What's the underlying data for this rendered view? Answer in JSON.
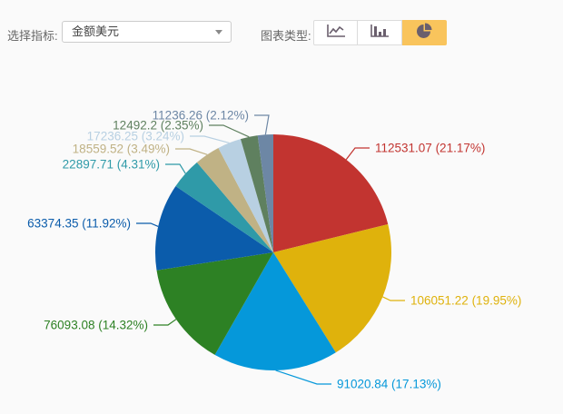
{
  "toolbar": {
    "indicator_label": "选择指标:",
    "indicator_select": {
      "value": "金额美元"
    },
    "chart_type_label": "图表类型:",
    "chart_type_buttons": [
      {
        "name": "line-chart",
        "active": false
      },
      {
        "name": "bar-chart",
        "active": false
      },
      {
        "name": "pie-chart",
        "active": true
      }
    ],
    "active_button_color": "#f9c45c",
    "icon_color": "#6a5f6d"
  },
  "chart_data": {
    "type": "pie",
    "start_angle": "top",
    "direction": "clockwise",
    "label_format": "{value} ({percent}%)",
    "slices": [
      {
        "value": 112531.07,
        "value_label": "112531.07",
        "percent": 21.17,
        "color": "#c23430"
      },
      {
        "value": 106051.22,
        "value_label": "106051.22",
        "percent": 19.95,
        "color": "#dfb20c"
      },
      {
        "value": 91020.84,
        "value_label": "91020.84",
        "percent": 17.13,
        "color": "#0598da"
      },
      {
        "value": 76093.08,
        "value_label": "76093.08",
        "percent": 14.32,
        "color": "#2d8124"
      },
      {
        "value": 63374.35,
        "value_label": "63374.35",
        "percent": 11.92,
        "color": "#0b5cab"
      },
      {
        "value": 22897.71,
        "value_label": "22897.71",
        "percent": 4.31,
        "color": "#2f9aa8"
      },
      {
        "value": 18559.52,
        "value_label": "18559.52",
        "percent": 3.49,
        "color": "#c0b285"
      },
      {
        "value": 17236.25,
        "value_label": "17236.25",
        "percent": 3.24,
        "color": "#b8d0e2"
      },
      {
        "value": 12492.2,
        "value_label": "12492.2",
        "percent": 2.35,
        "color": "#5f805f"
      },
      {
        "value": 11236.26,
        "value_label": "11236.26",
        "percent": 2.12,
        "color": "#6d87a5"
      }
    ]
  }
}
